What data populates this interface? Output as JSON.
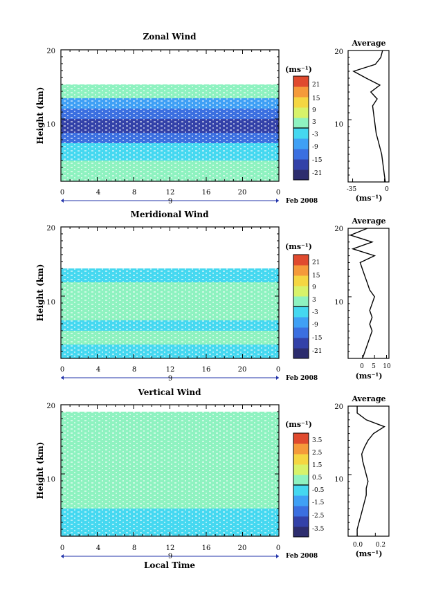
{
  "figure": {
    "xlabel": "Local Time",
    "date_label": "Feb 2008",
    "day_label": "9"
  },
  "chart_data": [
    {
      "type": "heatmap",
      "title": "Zonal Wind",
      "ylabel": "Height (km)",
      "x_ticks": [
        "0",
        "4",
        "8",
        "12",
        "16",
        "20",
        "0"
      ],
      "xlim": [
        0,
        24
      ],
      "y_ticks": [
        "10",
        "20"
      ],
      "ylim": [
        1,
        20
      ],
      "colorbar": {
        "unit": "(ms⁻¹)",
        "ticks": [
          "21",
          "15",
          "9",
          "3",
          "-3",
          "-9",
          "-15",
          "-21"
        ],
        "range": [
          -24,
          24
        ]
      },
      "layers": [
        {
          "bottom": 1,
          "top": 4,
          "value": 2
        },
        {
          "bottom": 4,
          "top": 6.5,
          "value": -1
        },
        {
          "bottom": 6.5,
          "top": 8,
          "value": -10
        },
        {
          "bottom": 8,
          "top": 10,
          "value": -15
        },
        {
          "bottom": 10,
          "top": 11.5,
          "value": -11
        },
        {
          "bottom": 11.5,
          "top": 13,
          "value": -6
        },
        {
          "bottom": 13,
          "top": 15,
          "value": 3
        }
      ],
      "profile": {
        "title": "Average",
        "xlabel": "(ms⁻¹)",
        "x_ticks": [
          "-35",
          "0"
        ],
        "xlim": [
          -40,
          5
        ],
        "y_ticks": [
          "10",
          "20"
        ],
        "ylim": [
          1,
          20
        ],
        "height": [
          1,
          2,
          3,
          4,
          5,
          6,
          7,
          8,
          9,
          10,
          11,
          12,
          13,
          14,
          15,
          16,
          17,
          18,
          19,
          20
        ],
        "value": [
          1,
          0,
          -1,
          -2,
          -3,
          -5,
          -7,
          -9,
          -10,
          -11,
          -12,
          -13,
          -8,
          -15,
          -5,
          -20,
          -34,
          -10,
          -4,
          -2
        ]
      }
    },
    {
      "type": "heatmap",
      "title": "Meridional Wind",
      "ylabel": "Height (km)",
      "x_ticks": [
        "0",
        "4",
        "8",
        "12",
        "16",
        "20",
        "0"
      ],
      "xlim": [
        0,
        24
      ],
      "y_ticks": [
        "10",
        "20"
      ],
      "ylim": [
        1,
        20
      ],
      "colorbar": {
        "unit": "(ms⁻¹)",
        "ticks": [
          "21",
          "15",
          "9",
          "3",
          "-3",
          "-9",
          "-15",
          "-21"
        ],
        "range": [
          -24,
          24
        ]
      },
      "layers": [
        {
          "bottom": 1,
          "top": 3,
          "value": -3
        },
        {
          "bottom": 3,
          "top": 5,
          "value": 2
        },
        {
          "bottom": 5,
          "top": 6.5,
          "value": -3
        },
        {
          "bottom": 6.5,
          "top": 8,
          "value": 1
        },
        {
          "bottom": 8,
          "top": 10,
          "value": 4
        },
        {
          "bottom": 10,
          "top": 12,
          "value": 1
        },
        {
          "bottom": 12,
          "top": 14,
          "value": -3
        }
      ],
      "profile": {
        "title": "Average",
        "xlabel": "(ms⁻¹)",
        "x_ticks": [
          "0",
          "5",
          "10"
        ],
        "xlim": [
          -6,
          11
        ],
        "y_ticks": [
          "10",
          "20"
        ],
        "ylim": [
          1,
          20
        ],
        "height": [
          1,
          2,
          3,
          4,
          5,
          6,
          7,
          8,
          9,
          10,
          11,
          12,
          13,
          14,
          15,
          16,
          17,
          18,
          19,
          20
        ],
        "value": [
          0,
          1,
          2,
          3,
          4,
          3,
          4,
          3,
          4,
          5,
          3,
          2,
          1,
          0,
          -1,
          5,
          -4,
          4,
          -5,
          2
        ]
      }
    },
    {
      "type": "heatmap",
      "title": "Vertical Wind",
      "ylabel": "Height (km)",
      "x_ticks": [
        "0",
        "4",
        "8",
        "12",
        "16",
        "20",
        "0"
      ],
      "xlim": [
        0,
        24
      ],
      "y_ticks": [
        "10",
        "20"
      ],
      "ylim": [
        1,
        20
      ],
      "colorbar": {
        "unit": "(ms⁻¹)",
        "ticks": [
          "3.5",
          "2.5",
          "1.5",
          "0.5",
          "-0.5",
          "-1.5",
          "-2.5",
          "-3.5"
        ],
        "range": [
          -4,
          4
        ]
      },
      "layers": [
        {
          "bottom": 1,
          "top": 5,
          "value": -0.3
        },
        {
          "bottom": 5,
          "top": 13,
          "value": 0.1
        },
        {
          "bottom": 13,
          "top": 19,
          "value": 0.0
        }
      ],
      "profile": {
        "title": "Average",
        "xlabel": "(ms⁻¹)",
        "x_ticks": [
          "0.0",
          "0.2"
        ],
        "xlim": [
          -0.1,
          0.35
        ],
        "y_ticks": [
          "10",
          "20"
        ],
        "ylim": [
          1,
          20
        ],
        "height": [
          1,
          2,
          3,
          4,
          5,
          6,
          7,
          8,
          9,
          10,
          11,
          12,
          13,
          14,
          15,
          16,
          17,
          18,
          19,
          20
        ],
        "value": [
          0.0,
          0.0,
          0.02,
          0.04,
          0.06,
          0.08,
          0.1,
          0.1,
          0.12,
          0.1,
          0.08,
          0.06,
          0.05,
          0.08,
          0.12,
          0.18,
          0.3,
          0.1,
          0.0,
          0.0
        ]
      }
    }
  ]
}
